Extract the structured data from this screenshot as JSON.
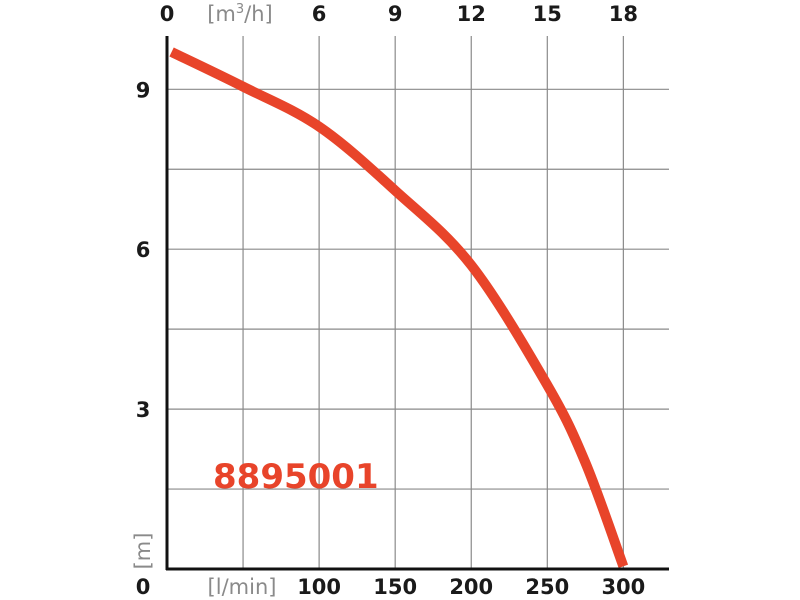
{
  "chart_data": {
    "type": "line",
    "x_bottom": {
      "unit": "[l/min]",
      "ticks": [
        "0",
        "100",
        "150",
        "200",
        "250",
        "300"
      ],
      "tick_values": [
        0,
        100,
        150,
        200,
        250,
        300
      ],
      "range": [
        0,
        330
      ]
    },
    "x_top": {
      "unit": "[m3/h]",
      "unit_base": "[m",
      "unit_sup": "3",
      "unit_tail": "/h]",
      "ticks": [
        "0",
        "6",
        "9",
        "12",
        "15",
        "18"
      ]
    },
    "y": {
      "unit": "[m]",
      "ticks": [
        "0",
        "3",
        "6",
        "9"
      ],
      "tick_values": [
        0,
        3,
        6,
        9
      ],
      "range": [
        0,
        10
      ],
      "grid_step": 1.5
    },
    "grid": true,
    "series": [
      {
        "label": "8895001",
        "color": "#e8442a",
        "x": [
          3,
          50,
          100,
          150,
          200,
          250,
          275,
          300
        ],
        "y": [
          9.7,
          9.05,
          8.3,
          7.1,
          5.7,
          3.45,
          2.0,
          0.05
        ]
      }
    ]
  }
}
